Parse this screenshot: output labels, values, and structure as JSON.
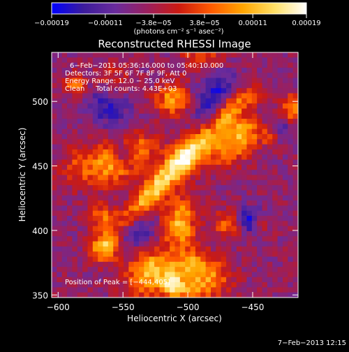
{
  "chart_data": {
    "type": "heatmap",
    "title": "Reconstructed RHESSI Image",
    "xlabel": "Heliocentric X (arcsec)",
    "ylabel": "Heliocentric Y (arcsec)",
    "xlim": [
      -605,
      -415
    ],
    "ylim": [
      348,
      538
    ],
    "x_ticks": [
      {
        "value": -600,
        "label": "−600"
      },
      {
        "value": -550,
        "label": "−550"
      },
      {
        "value": -500,
        "label": "−500"
      },
      {
        "value": -450,
        "label": "−450"
      }
    ],
    "y_ticks": [
      {
        "value": 350,
        "label": "350"
      },
      {
        "value": 400,
        "label": "400"
      },
      {
        "value": 450,
        "label": "450"
      },
      {
        "value": 500,
        "label": "500"
      }
    ],
    "colorbar": {
      "range": [
        -0.00019,
        0.00019
      ],
      "ticks": [
        {
          "value": -0.00019,
          "label": "−0.00019"
        },
        {
          "value": -0.00011,
          "label": "−0.00011"
        },
        {
          "value": -3.8e-05,
          "label": "−3.8e−05"
        },
        {
          "value": 3.8e-05,
          "label": "3.8e−05"
        },
        {
          "value": 0.00011,
          "label": "0.00011"
        },
        {
          "value": 0.00019,
          "label": "0.00019"
        }
      ],
      "unit_label": "(photons cm⁻² s⁻¹ asec⁻²)",
      "colors": [
        "#0000ff",
        "#3c1c9c",
        "#6a2b9c",
        "#9a1f5e",
        "#cc1a10",
        "#ff5a00",
        "#ffa500",
        "#ffe066",
        "#ffffff"
      ]
    },
    "annotations": [
      "6−Feb−2013 05:36:16.000 to 05:40:10.000",
      "Detectors: 3F 5F 6F 7F 8F 9F, Att 0",
      "Energy Range: 12.0 − 25.0 keV",
      "Clean     Total counts: 4.43E+03"
    ],
    "peak_label": "Position of Peak = [−444,405]",
    "grid": false
  },
  "footer": {
    "date": "7−Feb−2013 12:15"
  }
}
